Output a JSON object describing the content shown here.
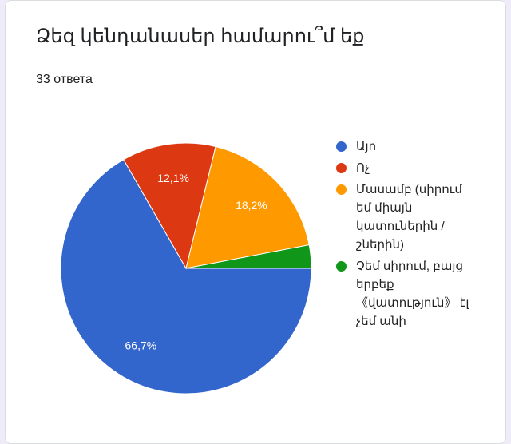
{
  "chart_data": {
    "type": "pie",
    "title": "Ձեզ կենդանասեր համարու՞մ եք",
    "subtitle": "33 ответа",
    "categories": [
      "Այո",
      "Ոչ",
      "Մասամբ (սիրում եմ միայն կատուներին / շներին)",
      "Չեմ սիրում, բայց երբեք 《վատություն》 էլ չեմ անի"
    ],
    "values": [
      66.7,
      12.1,
      18.2,
      3.0
    ],
    "value_labels": [
      "66,7%",
      "12,1%",
      "18,2%",
      null
    ],
    "colors": [
      "#3366cc",
      "#dc3912",
      "#ff9900",
      "#109618"
    ],
    "legend": "right"
  }
}
